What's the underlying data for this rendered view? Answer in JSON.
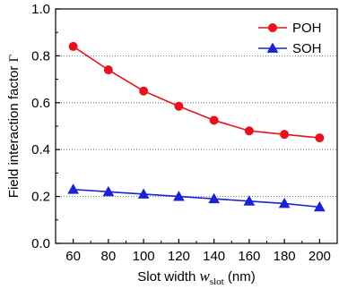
{
  "chart_data": {
    "type": "line",
    "x": [
      60,
      80,
      100,
      120,
      140,
      160,
      180,
      200
    ],
    "series": [
      {
        "name": "POH",
        "color": "#e8111b",
        "marker": "circle",
        "values": [
          0.84,
          0.74,
          0.65,
          0.585,
          0.525,
          0.48,
          0.465,
          0.45
        ]
      },
      {
        "name": "SOH",
        "color": "#1a22d6",
        "marker": "triangle",
        "values": [
          0.23,
          0.22,
          0.21,
          0.2,
          0.19,
          0.18,
          0.17,
          0.155
        ]
      }
    ],
    "xlabel": {
      "main": "Slot width ",
      "var": "w",
      "sub": "slot",
      "unit": " (nm)"
    },
    "ylabel": {
      "main": "Field interaction factor ",
      "symbol": "Γ"
    },
    "xlim": [
      50,
      210
    ],
    "ylim": [
      0,
      1.0
    ],
    "xticks": [
      60,
      80,
      100,
      120,
      140,
      160,
      180,
      200
    ],
    "yticks": [
      0.0,
      0.2,
      0.4,
      0.6,
      0.8,
      1.0
    ],
    "ytick_labels": [
      "0.0",
      "0.2",
      "0.4",
      "0.6",
      "0.8",
      "1.0"
    ],
    "grid": "horizontal-dotted",
    "legend_position": "top-right"
  }
}
